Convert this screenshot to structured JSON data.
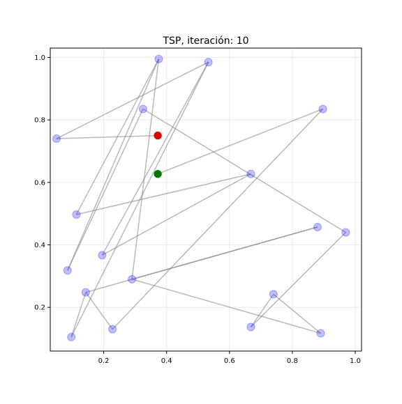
{
  "chart_data": {
    "type": "line",
    "title": "TSP, iteración: 10",
    "xlabel": "",
    "ylabel": "",
    "xlim": [
      0.03,
      1.02
    ],
    "ylim": [
      0.06,
      1.03
    ],
    "xticks": [
      0.2,
      0.4,
      0.6,
      0.8,
      1.0
    ],
    "xtick_labels": [
      "0.2",
      "0.4",
      "0.6",
      "0.8",
      "1.0"
    ],
    "yticks": [
      0.2,
      0.4,
      0.6,
      0.8,
      1.0
    ],
    "ytick_labels": [
      "0.2",
      "0.4",
      "0.6",
      "0.8",
      "1.0"
    ],
    "grid": true,
    "cities": [
      {
        "x": 0.375,
        "y": 0.995
      },
      {
        "x": 0.533,
        "y": 0.985
      },
      {
        "x": 0.325,
        "y": 0.835
      },
      {
        "x": 0.897,
        "y": 0.835
      },
      {
        "x": 0.05,
        "y": 0.74
      },
      {
        "x": 0.668,
        "y": 0.627
      },
      {
        "x": 0.113,
        "y": 0.497
      },
      {
        "x": 0.88,
        "y": 0.457
      },
      {
        "x": 0.97,
        "y": 0.44
      },
      {
        "x": 0.195,
        "y": 0.367
      },
      {
        "x": 0.085,
        "y": 0.318
      },
      {
        "x": 0.29,
        "y": 0.29
      },
      {
        "x": 0.143,
        "y": 0.248
      },
      {
        "x": 0.74,
        "y": 0.242
      },
      {
        "x": 0.228,
        "y": 0.13
      },
      {
        "x": 0.668,
        "y": 0.137
      },
      {
        "x": 0.89,
        "y": 0.117
      },
      {
        "x": 0.097,
        "y": 0.105
      }
    ],
    "tour": [
      {
        "x": 0.372,
        "y": 0.75
      },
      {
        "x": 0.05,
        "y": 0.74
      },
      {
        "x": 0.533,
        "y": 0.985
      },
      {
        "x": 0.195,
        "y": 0.367
      },
      {
        "x": 0.668,
        "y": 0.627
      },
      {
        "x": 0.113,
        "y": 0.497
      },
      {
        "x": 0.375,
        "y": 0.995
      },
      {
        "x": 0.29,
        "y": 0.29
      },
      {
        "x": 0.88,
        "y": 0.457
      },
      {
        "x": 0.143,
        "y": 0.248
      },
      {
        "x": 0.228,
        "y": 0.13
      },
      {
        "x": 0.897,
        "y": 0.835
      },
      {
        "x": 0.372,
        "y": 0.627
      }
    ],
    "tour_b": [
      {
        "x": 0.97,
        "y": 0.44
      },
      {
        "x": 0.325,
        "y": 0.835
      },
      {
        "x": 0.085,
        "y": 0.318
      }
    ],
    "tour_c": [
      {
        "x": 0.29,
        "y": 0.29
      },
      {
        "x": 0.89,
        "y": 0.117
      },
      {
        "x": 0.74,
        "y": 0.242
      },
      {
        "x": 0.668,
        "y": 0.137
      },
      {
        "x": 0.97,
        "y": 0.44
      }
    ],
    "tour_d": [
      {
        "x": 0.375,
        "y": 0.995
      },
      {
        "x": 0.085,
        "y": 0.318
      }
    ],
    "tour_e": [
      {
        "x": 0.143,
        "y": 0.248
      },
      {
        "x": 0.097,
        "y": 0.105
      },
      {
        "x": 0.533,
        "y": 0.985
      }
    ],
    "current_city": {
      "x": 0.372,
      "y": 0.75
    },
    "start_city": {
      "x": 0.372,
      "y": 0.627
    },
    "colors": {
      "city": "#0000ff",
      "path": "#7f7f7f",
      "current": "#dd0000",
      "start": "#007700"
    }
  }
}
